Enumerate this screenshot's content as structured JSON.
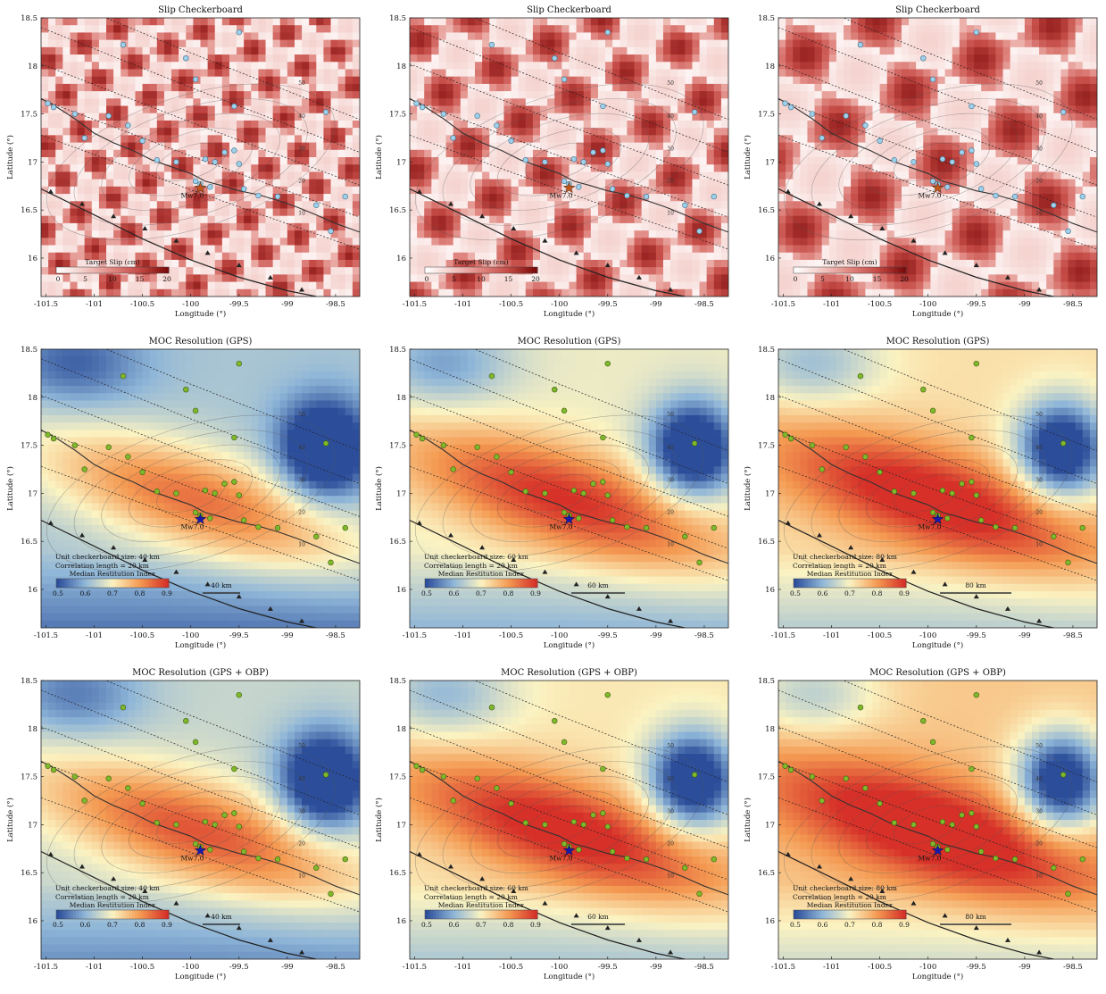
{
  "figure": {
    "rows": [
      {
        "row_title": "Slip Checkerboard",
        "kind": "checker",
        "colorbar": {
          "title": "Target Slip (cm)",
          "ticks": [
            "0",
            "5",
            "10",
            "15",
            "20"
          ],
          "colors": [
            "#ffffff",
            "#f2c8c3",
            "#e08680",
            "#c44a45",
            "#7b0a0a"
          ]
        }
      },
      {
        "row_title": "MOC Resolution (GPS)",
        "kind": "resolution",
        "colorbar": {
          "title": "Median Restitution Index",
          "ticks": [
            "0.5",
            "0.6",
            "0.7",
            "0.8",
            "0.9"
          ],
          "colors": [
            "#2c4e9a",
            "#8fb6d8",
            "#fbf3c2",
            "#f49a52",
            "#d63028"
          ]
        }
      },
      {
        "row_title": "MOC Resolution (GPS + OBP)",
        "kind": "resolution",
        "colorbar": {
          "title": "Median Restitution Index",
          "ticks": [
            "0.5",
            "0.6",
            "0.7",
            "0.8",
            "0.9"
          ],
          "colors": [
            "#2c4e9a",
            "#8fb6d8",
            "#fbf3c2",
            "#f49a52",
            "#d63028"
          ]
        }
      }
    ],
    "columns": [
      {
        "checker_size_text": "Unit checkerboard size: 40 km",
        "scale_bar": "40 km"
      },
      {
        "checker_size_text": "Unit checkerboard size: 60 km",
        "scale_bar": "60 km"
      },
      {
        "checker_size_text": "Unit checkerboard size: 80 km",
        "scale_bar": "80 km"
      }
    ],
    "correlation_text": "Correlation length = 20 km",
    "x_label": "Longitude (°)",
    "y_label": "Latitude (°)",
    "x_ticks": [
      "-101.5",
      "-101",
      "-100.5",
      "-100",
      "-99.5",
      "-99",
      "-98.5"
    ],
    "y_ticks": [
      "16",
      "16.5",
      "17",
      "17.5",
      "18",
      "18.5"
    ],
    "epicenter_label": "Mw7.0",
    "contour_labels": [
      "10",
      "20",
      "30",
      "40",
      "50"
    ]
  },
  "chart_data": [
    {
      "type": "heatmap",
      "title": "Slip Checkerboard",
      "xlabel": "Longitude (°)",
      "ylabel": "Latitude (°)",
      "xlim": [
        -101.55,
        -98.25
      ],
      "ylim": [
        15.6,
        18.5
      ],
      "colorbar_label": "Target Slip (cm)",
      "colorbar_range": [
        0,
        20
      ],
      "checkerboard_sizes_km": [
        40,
        60,
        80
      ],
      "epicenter": {
        "lon": -99.9,
        "lat": 16.73,
        "label": "Mw7.0"
      },
      "gps_stations": [
        [
          -101.48,
          17.61
        ],
        [
          -101.42,
          17.57
        ],
        [
          -101.2,
          17.5
        ],
        [
          -101.1,
          17.25
        ],
        [
          -100.85,
          17.48
        ],
        [
          -100.65,
          17.38
        ],
        [
          -100.5,
          17.22
        ],
        [
          -100.35,
          17.02
        ],
        [
          -100.15,
          17.0
        ],
        [
          -99.95,
          16.8
        ],
        [
          -99.9,
          16.77
        ],
        [
          -99.85,
          17.03
        ],
        [
          -99.75,
          17.0
        ],
        [
          -99.65,
          17.1
        ],
        [
          -99.55,
          17.12
        ],
        [
          -99.5,
          16.98
        ],
        [
          -99.8,
          16.74
        ],
        [
          -99.45,
          16.72
        ],
        [
          -99.3,
          16.65
        ],
        [
          -99.1,
          16.64
        ],
        [
          -98.7,
          16.55
        ],
        [
          -98.55,
          16.28
        ],
        [
          -98.4,
          16.64
        ],
        [
          -99.5,
          18.35
        ],
        [
          -99.95,
          17.86
        ],
        [
          -100.05,
          18.08
        ],
        [
          -100.7,
          18.22
        ],
        [
          -98.6,
          17.52
        ],
        [
          -99.55,
          17.58
        ]
      ]
    },
    {
      "type": "heatmap",
      "title": "MOC Resolution (GPS)",
      "xlabel": "Longitude (°)",
      "ylabel": "Latitude (°)",
      "xlim": [
        -101.55,
        -98.25
      ],
      "ylim": [
        15.6,
        18.5
      ],
      "colorbar_label": "Median Restitution Index",
      "colorbar_range": [
        0.5,
        0.95
      ],
      "correlation_length_km": 20,
      "checkerboard_sizes_km": [
        40,
        60,
        80
      ]
    },
    {
      "type": "heatmap",
      "title": "MOC Resolution (GPS + OBP)",
      "xlabel": "Longitude (°)",
      "ylabel": "Latitude (°)",
      "xlim": [
        -101.55,
        -98.25
      ],
      "ylim": [
        15.6,
        18.5
      ],
      "colorbar_label": "Median Restitution Index",
      "colorbar_range": [
        0.5,
        0.95
      ],
      "correlation_length_km": 20,
      "checkerboard_sizes_km": [
        40,
        60,
        80
      ]
    }
  ]
}
